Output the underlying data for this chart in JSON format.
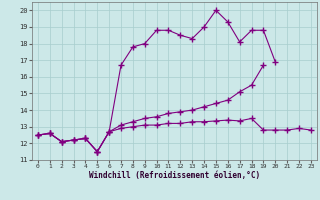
{
  "xlabel": "Windchill (Refroidissement éolien,°C)",
  "background_color": "#cce8e8",
  "line_color": "#800080",
  "xlim": [
    -0.5,
    23.5
  ],
  "ylim": [
    11,
    20.5
  ],
  "xticks": [
    0,
    1,
    2,
    3,
    4,
    5,
    6,
    7,
    8,
    9,
    10,
    11,
    12,
    13,
    14,
    15,
    16,
    17,
    18,
    19,
    20,
    21,
    22,
    23
  ],
  "yticks": [
    11,
    12,
    13,
    14,
    15,
    16,
    17,
    18,
    19,
    20
  ],
  "series": [
    [
      12.5,
      12.6,
      12.1,
      12.2,
      12.3,
      11.5,
      12.7,
      12.9,
      13.0,
      13.1,
      13.1,
      13.2,
      13.2,
      13.3,
      13.3,
      13.35,
      13.4,
      13.35,
      13.5,
      12.8,
      12.8,
      12.8,
      12.9,
      12.8
    ],
    [
      12.5,
      12.6,
      12.1,
      12.2,
      12.3,
      11.5,
      12.7,
      13.1,
      13.3,
      13.5,
      13.6,
      13.8,
      13.9,
      14.0,
      14.2,
      14.4,
      14.6,
      15.1,
      15.5,
      16.7,
      null,
      null,
      null,
      null
    ],
    [
      12.5,
      12.6,
      12.1,
      12.2,
      12.3,
      11.5,
      12.7,
      16.7,
      17.8,
      18.0,
      18.8,
      18.8,
      18.5,
      18.3,
      19.0,
      20.0,
      19.3,
      18.1,
      18.8,
      18.8,
      16.9,
      null,
      null,
      null
    ]
  ]
}
